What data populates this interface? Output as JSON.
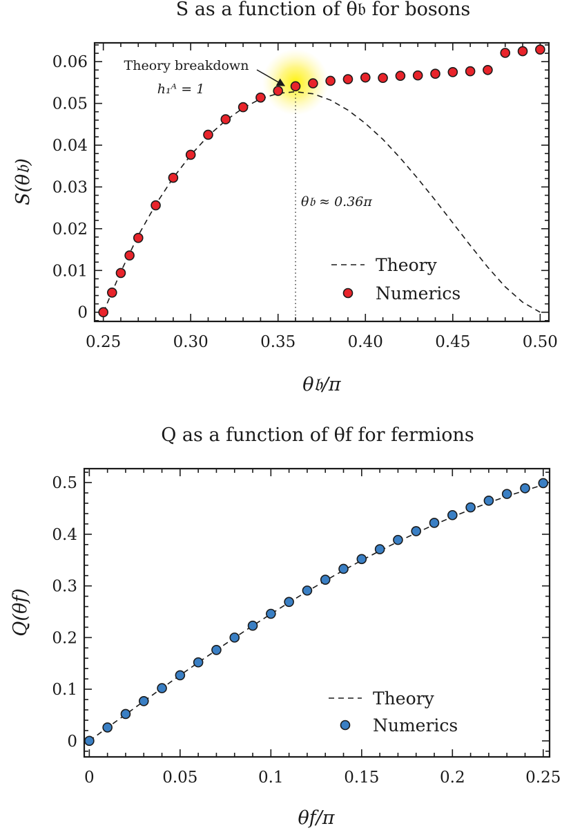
{
  "chart_data": [
    {
      "type": "scatter",
      "title": "S as a function of θ𝔟 for bosons",
      "xlabel": "θ𝔟/π",
      "ylabel": "S(θ𝔟)",
      "xlim": [
        0.245,
        0.505
      ],
      "ylim": [
        -0.0022,
        0.0645
      ],
      "xticks": [
        0.25,
        0.3,
        0.35,
        0.4,
        0.45,
        0.5
      ],
      "xtick_labels": [
        "0.25",
        "0.30",
        "0.35",
        "0.40",
        "0.45",
        "0.50"
      ],
      "yticks": [
        0,
        0.01,
        0.02,
        0.03,
        0.04,
        0.05,
        0.06
      ],
      "ytick_labels": [
        "0",
        "0.01",
        "0.02",
        "0.03",
        "0.04",
        "0.05",
        "0.06"
      ],
      "grid": false,
      "legend_position": "bottom-right",
      "series": [
        {
          "name": "Theory",
          "style": "dashed-line",
          "color": "#1a1a1a",
          "x": [
            0.25,
            0.26,
            0.27,
            0.28,
            0.29,
            0.3,
            0.31,
            0.32,
            0.33,
            0.34,
            0.35,
            0.36,
            0.37,
            0.38,
            0.39,
            0.4,
            0.41,
            0.42,
            0.43,
            0.44,
            0.45,
            0.46,
            0.47,
            0.48,
            0.49,
            0.5
          ],
          "y": [
            0.0,
            0.0097,
            0.0184,
            0.0258,
            0.0322,
            0.0376,
            0.0422,
            0.0459,
            0.0489,
            0.0511,
            0.0524,
            0.0528,
            0.0523,
            0.0508,
            0.0484,
            0.0452,
            0.0414,
            0.0369,
            0.032,
            0.0268,
            0.0214,
            0.016,
            0.0108,
            0.0061,
            0.0024,
            0.0
          ]
        },
        {
          "name": "Numerics",
          "style": "markers",
          "color": "#e8242b",
          "x": [
            0.25,
            0.255,
            0.26,
            0.265,
            0.27,
            0.28,
            0.29,
            0.3,
            0.31,
            0.32,
            0.33,
            0.34,
            0.35,
            0.36,
            0.37,
            0.38,
            0.39,
            0.4,
            0.41,
            0.42,
            0.43,
            0.44,
            0.45,
            0.46,
            0.47,
            0.48,
            0.49,
            0.5
          ],
          "y": [
            0.0,
            0.0047,
            0.0094,
            0.0136,
            0.0178,
            0.0256,
            0.0322,
            0.0377,
            0.0425,
            0.0462,
            0.0491,
            0.0514,
            0.053,
            0.0541,
            0.0548,
            0.0554,
            0.0558,
            0.0562,
            0.0561,
            0.0566,
            0.0567,
            0.0571,
            0.0575,
            0.0577,
            0.058,
            0.0621,
            0.0625,
            0.0629
          ]
        }
      ],
      "annotations": {
        "breakdown_label": "Theory breakdown",
        "breakdown_condition": "h₁ᴬ = 1",
        "breakdown_x": 0.36,
        "breakdown_y": 0.0541,
        "vline_label": "θ𝔟 ≈ 0.36π",
        "vline_x": 0.36
      }
    },
    {
      "type": "scatter",
      "title": "Q as a function of θf for fermions",
      "xlabel": "θf/π",
      "ylabel": "Q(θf)",
      "xlim": [
        -0.0028,
        0.2535
      ],
      "ylim": [
        -0.031,
        0.527
      ],
      "xticks": [
        0,
        0.05,
        0.1,
        0.15,
        0.2,
        0.25
      ],
      "xtick_labels": [
        "0",
        "0.05",
        "0.1",
        "0.15",
        "0.2",
        "0.25"
      ],
      "yticks": [
        0,
        0.1,
        0.2,
        0.3,
        0.4,
        0.5
      ],
      "ytick_labels": [
        "0",
        "0.1",
        "0.2",
        "0.3",
        "0.4",
        "0.5"
      ],
      "grid": false,
      "legend_position": "bottom-right",
      "series": [
        {
          "name": "Theory",
          "style": "dashed-line",
          "color": "#1a1a1a",
          "x": [
            0,
            0.01,
            0.02,
            0.03,
            0.04,
            0.05,
            0.06,
            0.07,
            0.08,
            0.09,
            0.1,
            0.11,
            0.12,
            0.13,
            0.14,
            0.15,
            0.16,
            0.17,
            0.18,
            0.19,
            0.2,
            0.21,
            0.22,
            0.23,
            0.24,
            0.25
          ],
          "y": [
            0.0,
            0.0257,
            0.0512,
            0.0767,
            0.102,
            0.127,
            0.1516,
            0.1758,
            0.1996,
            0.223,
            0.2456,
            0.2679,
            0.2893,
            0.3101,
            0.3302,
            0.3494,
            0.3679,
            0.3856,
            0.4025,
            0.4185,
            0.4336,
            0.4478,
            0.4612,
            0.4735,
            0.4849,
            0.4955
          ]
        },
        {
          "name": "Numerics",
          "style": "markers",
          "color": "#3a7fc4",
          "x": [
            0,
            0.01,
            0.02,
            0.03,
            0.04,
            0.05,
            0.06,
            0.07,
            0.08,
            0.09,
            0.1,
            0.11,
            0.12,
            0.13,
            0.14,
            0.15,
            0.16,
            0.17,
            0.18,
            0.19,
            0.2,
            0.21,
            0.22,
            0.23,
            0.24,
            0.25
          ],
          "y": [
            0.0,
            0.026,
            0.052,
            0.077,
            0.102,
            0.127,
            0.152,
            0.176,
            0.2,
            0.223,
            0.246,
            0.269,
            0.291,
            0.312,
            0.333,
            0.352,
            0.371,
            0.389,
            0.406,
            0.422,
            0.437,
            0.452,
            0.465,
            0.478,
            0.489,
            0.499
          ]
        }
      ]
    }
  ]
}
